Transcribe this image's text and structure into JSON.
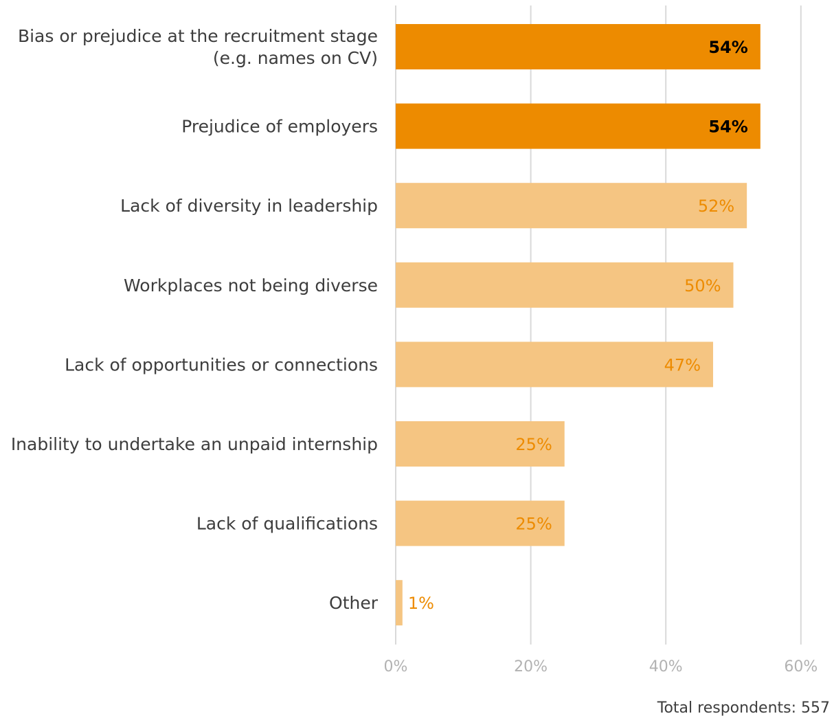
{
  "chart_data": {
    "type": "bar",
    "orientation": "horizontal",
    "categories": [
      [
        "Bias or prejudice at the recruitment stage",
        "(e.g. names on CV)"
      ],
      [
        "Prejudice of employers"
      ],
      [
        "Lack of diversity in leadership"
      ],
      [
        "Workplaces not being diverse"
      ],
      [
        "Lack of opportunities or connections"
      ],
      [
        "Inability to undertake an unpaid internship"
      ],
      [
        "Lack of qualifications"
      ],
      [
        "Other"
      ]
    ],
    "values": [
      54,
      54,
      52,
      50,
      47,
      25,
      25,
      1
    ],
    "value_labels": [
      "54%",
      "54%",
      "52%",
      "50%",
      "47%",
      "25%",
      "25%",
      "1%"
    ],
    "highlighted": [
      true,
      true,
      false,
      false,
      false,
      false,
      false,
      false
    ],
    "xlim": [
      0,
      60
    ],
    "xticks": [
      0,
      20,
      40,
      60
    ],
    "xtick_labels": [
      "0%",
      "20%",
      "40%",
      "60%"
    ],
    "grid": "vertical",
    "colors": {
      "highlight_bar": "#ed8b00",
      "bar": "#f5c582",
      "highlight_label": "#000000",
      "label": "#ed8b00",
      "grid": "#d9d9d9"
    }
  },
  "footnote": "Total respondents: 557"
}
